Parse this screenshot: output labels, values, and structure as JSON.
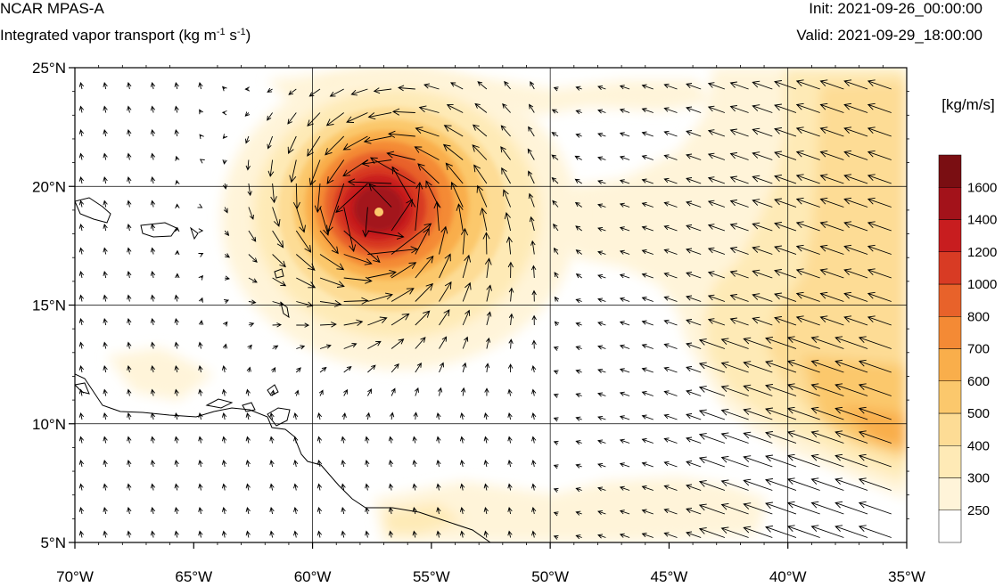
{
  "header": {
    "title": "NCAR MPAS-A",
    "subtitle_main": "Integrated vapor transport (kg m",
    "subtitle_exp1": "-1",
    "subtitle_mid": " s",
    "subtitle_exp2": "-1",
    "subtitle_end": ")",
    "init": "Init: 2021-09-26_00:00:00",
    "valid": "Valid: 2021-09-29_18:00:00"
  },
  "map": {
    "lon_range": [
      -70,
      -35
    ],
    "lat_range": [
      5,
      25
    ],
    "lat_ticks": [
      {
        "value": 25,
        "label": "25°N"
      },
      {
        "value": 20,
        "label": "20°N"
      },
      {
        "value": 15,
        "label": "15°N"
      },
      {
        "value": 10,
        "label": "10°N"
      },
      {
        "value": 5,
        "label": "5°N"
      }
    ],
    "lon_ticks": [
      {
        "value": -70,
        "label": "70°W"
      },
      {
        "value": -65,
        "label": "65°W"
      },
      {
        "value": -60,
        "label": "60°W"
      },
      {
        "value": -55,
        "label": "55°W"
      },
      {
        "value": -50,
        "label": "50°W"
      },
      {
        "value": -45,
        "label": "45°W"
      },
      {
        "value": -40,
        "label": "40°W"
      },
      {
        "value": -35,
        "label": "35°W"
      }
    ],
    "gridlines_lon": [
      -60,
      -50,
      -40
    ],
    "gridlines_lat": [
      20,
      15,
      10
    ],
    "storm_center": {
      "lon": -57.2,
      "lat": 18.9
    }
  },
  "colorbar": {
    "unit": "[kg/m/s]",
    "levels": [
      250,
      300,
      400,
      500,
      600,
      700,
      800,
      1000,
      1200,
      1400,
      1600
    ],
    "colors": [
      "#ffffff",
      "#fff4d9",
      "#feeab6",
      "#fddc95",
      "#fbc86c",
      "#f9ae4b",
      "#f48a35",
      "#e8622a",
      "#d83b24",
      "#c81d1f",
      "#a3121a",
      "#7a0e12"
    ]
  }
}
